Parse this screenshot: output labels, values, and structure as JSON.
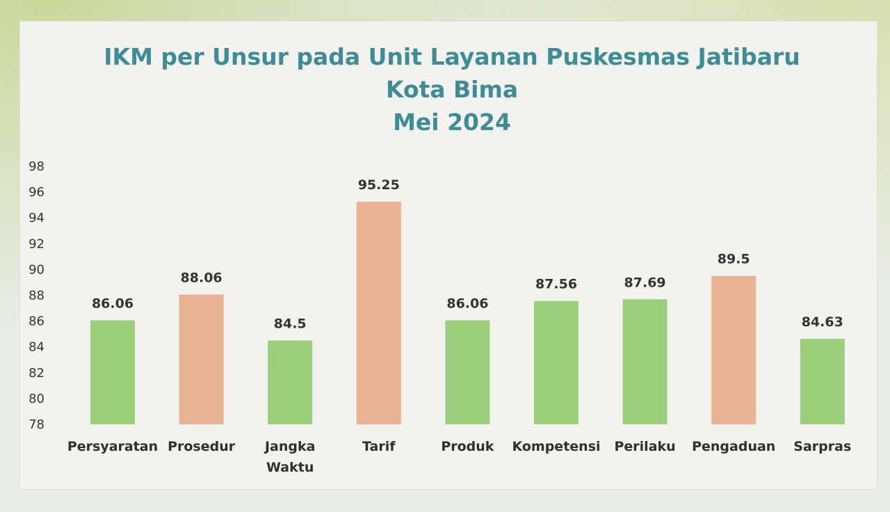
{
  "chart_data": {
    "type": "bar",
    "title_lines": [
      "IKM per Unsur pada Unit Layanan Puskesmas Jatibaru",
      "Kota Bima",
      "Mei 2024"
    ],
    "categories": [
      [
        "Persyaratan"
      ],
      [
        "Prosedur"
      ],
      [
        "Jangka",
        "Waktu"
      ],
      [
        "Tarif"
      ],
      [
        "Produk"
      ],
      [
        "Kompetensi"
      ],
      [
        "Perilaku"
      ],
      [
        "Pengaduan"
      ],
      [
        "Sarpras"
      ]
    ],
    "values": [
      86.06,
      88.06,
      84.5,
      95.25,
      86.06,
      87.56,
      87.69,
      89.5,
      84.63
    ],
    "value_labels": [
      "86.06",
      "88.06",
      "84.5",
      "95.25",
      "86.06",
      "87.56",
      "87.69",
      "89.5",
      "84.63"
    ],
    "bar_colors": [
      "#9ccf7c",
      "#e9b393",
      "#9ccf7c",
      "#e9b393",
      "#9ccf7c",
      "#9ccf7c",
      "#9ccf7c",
      "#e9b393",
      "#9ccf7c"
    ],
    "ylim": [
      78,
      98
    ],
    "yticks": [
      78,
      80,
      82,
      84,
      86,
      88,
      90,
      92,
      94,
      96,
      98
    ],
    "grid": false,
    "title_color": "#3d8c96"
  }
}
